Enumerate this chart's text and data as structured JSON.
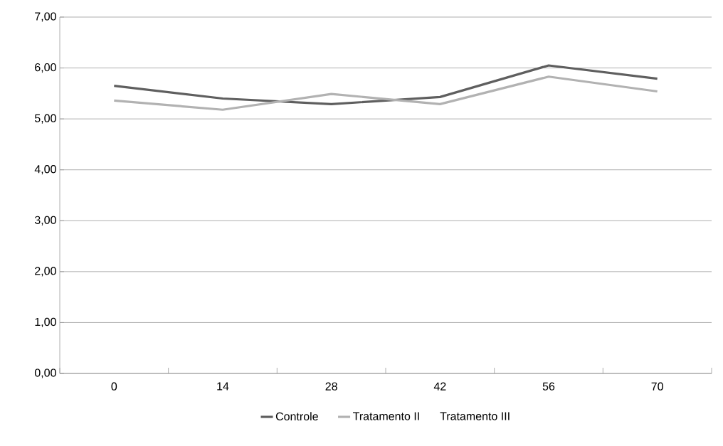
{
  "chart_data": {
    "type": "line",
    "categories": [
      "0",
      "14",
      "28",
      "42",
      "56",
      "70"
    ],
    "series": [
      {
        "name": "Controle",
        "color": "#5f5f5f",
        "values": [
          5.65,
          5.4,
          5.29,
          5.43,
          6.05,
          5.79
        ]
      },
      {
        "name": "Tratamento II",
        "color": "#b2b2b2",
        "values": [
          5.36,
          5.18,
          5.49,
          5.29,
          5.83,
          5.54
        ]
      },
      {
        "name": "Tratamento III",
        "values": [
          null,
          null,
          null,
          null,
          null,
          null
        ]
      }
    ],
    "ylim": [
      0,
      7
    ],
    "yticks": [
      {
        "value": 0,
        "label": "0,00"
      },
      {
        "value": 1,
        "label": "1,00"
      },
      {
        "value": 2,
        "label": "2,00"
      },
      {
        "value": 3,
        "label": "3,00"
      },
      {
        "value": 4,
        "label": "4,00"
      },
      {
        "value": 5,
        "label": "5,00"
      },
      {
        "value": 6,
        "label": "6,00"
      },
      {
        "value": 7,
        "label": "7,00"
      }
    ],
    "grid": "y",
    "legend": "bottom",
    "marker": "none",
    "line_style": "solid"
  }
}
